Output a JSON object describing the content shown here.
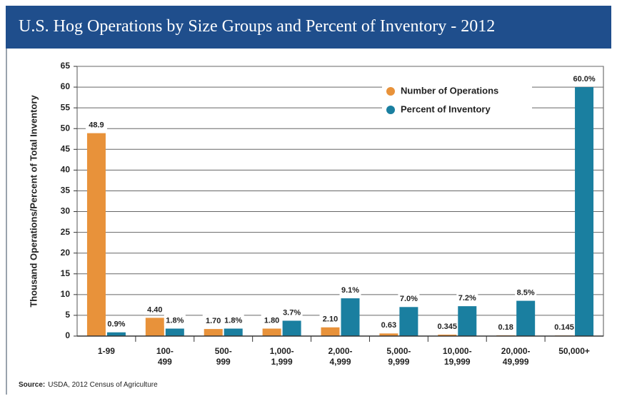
{
  "chart_data": {
    "type": "bar",
    "title": "U.S. Hog Operations by Size Groups and Percent of Inventory - 2012",
    "ylabel": "Thousand Operations/Percent of Total Inventory",
    "categories": [
      "1-99",
      "100-\n499",
      "500-\n999",
      "1,000-\n1,999",
      "2,000-\n4,999",
      "5,000-\n9,999",
      "10,000-\n19,999",
      "20,000-\n49,999",
      "50,000+"
    ],
    "series": [
      {
        "name": "Number of Operations",
        "color": "#e8923a",
        "values": [
          48.9,
          4.4,
          1.7,
          1.8,
          2.1,
          0.63,
          0.345,
          0.18,
          0.145
        ],
        "value_labels": [
          "48.9",
          "4.40",
          "1.70",
          "1.80",
          "2.10",
          "0.63",
          "0.345",
          "0.18",
          "0.145"
        ]
      },
      {
        "name": "Percent of Inventory",
        "color": "#1a7fa0",
        "values": [
          0.9,
          1.8,
          1.8,
          3.7,
          9.1,
          7.0,
          7.2,
          8.5,
          60.0
        ],
        "value_labels": [
          "0.9%",
          "1.8%",
          "1.8%",
          "3.7%",
          "9.1%",
          "7.0%",
          "7.2%",
          "8.5%",
          "60.0%"
        ]
      }
    ],
    "ylim": [
      0,
      65
    ],
    "yticks": [
      0,
      5,
      10,
      15,
      20,
      25,
      30,
      35,
      40,
      45,
      50,
      55,
      60,
      65
    ],
    "grid": true,
    "legend": "upper right",
    "source_label": "Source:",
    "source": "USDA, 2012 Census of Agriculture"
  }
}
